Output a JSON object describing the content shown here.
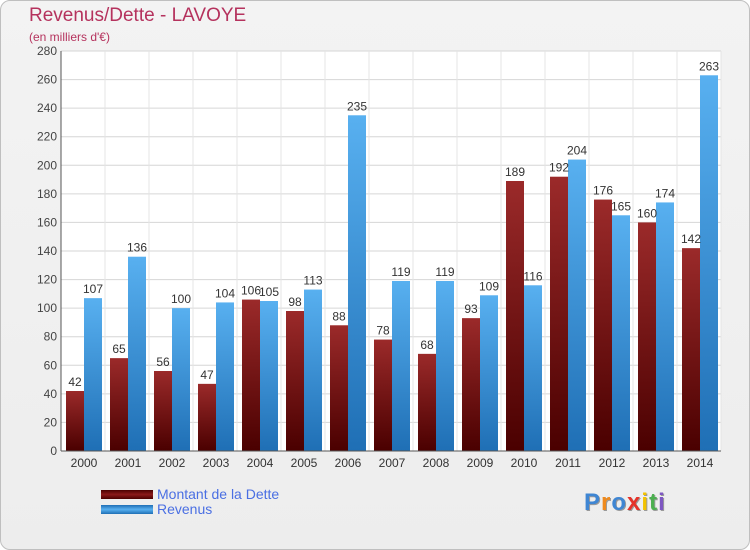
{
  "title": "Revenus/Dette - LAVOYE",
  "subtitle": "(en milliers d'€)",
  "logo": {
    "letters": [
      "P",
      "r",
      "o",
      "x",
      "i",
      "t",
      "i"
    ],
    "colors": [
      "#3f86d3",
      "#ef8a1d",
      "#3f86d3",
      "#e5332a",
      "#f2c200",
      "#4caf50",
      "#7e57c2"
    ]
  },
  "colors": {
    "dette": "#8b1a1a",
    "revenus": "#3d9ae8",
    "title": "#b5325d",
    "legend_text": "#4a6fe3"
  },
  "chart_data": {
    "type": "bar",
    "title": "Revenus/Dette - LAVOYE",
    "subtitle": "(en milliers d'€)",
    "categories": [
      "2000",
      "2001",
      "2002",
      "2003",
      "2004",
      "2005",
      "2006",
      "2007",
      "2008",
      "2009",
      "2010",
      "2011",
      "2012",
      "2013",
      "2014"
    ],
    "series": [
      {
        "name": "Montant de la Dette",
        "values": [
          42,
          65,
          56,
          47,
          106,
          98,
          88,
          78,
          68,
          93,
          189,
          192,
          176,
          160,
          142
        ]
      },
      {
        "name": "Revenus",
        "values": [
          107,
          136,
          100,
          104,
          105,
          113,
          235,
          119,
          119,
          109,
          116,
          204,
          165,
          174,
          263
        ]
      }
    ],
    "ylim": [
      0,
      280
    ],
    "yticks": [
      0,
      20,
      40,
      60,
      80,
      100,
      120,
      140,
      160,
      180,
      200,
      220,
      240,
      260,
      280
    ],
    "grid": true,
    "legend": "bottom-left"
  }
}
